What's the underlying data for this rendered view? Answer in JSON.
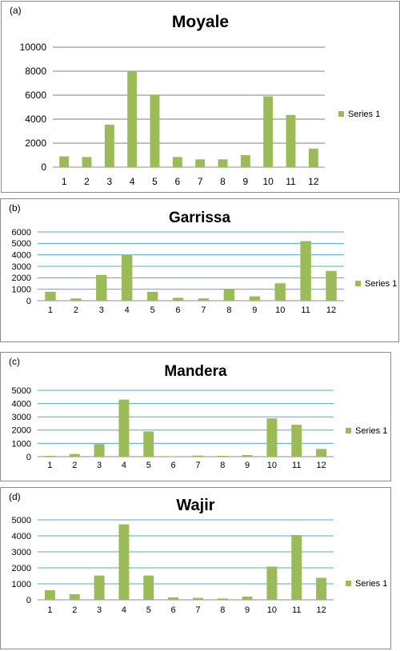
{
  "colors": {
    "bar": "#9bbb59",
    "grid_a": "#7f7f7f",
    "grid_b": "#4bacc6",
    "axis": "#8c8c8c",
    "text": "#000000"
  },
  "chart_data": [
    {
      "type": "bar",
      "panel": "(a)",
      "title": "Moyale",
      "categories": [
        "1",
        "2",
        "3",
        "4",
        "5",
        "6",
        "7",
        "8",
        "9",
        "10",
        "11",
        "12"
      ],
      "series": [
        {
          "name": "Series 1",
          "values": [
            900,
            850,
            3550,
            8000,
            6050,
            850,
            650,
            650,
            1000,
            5900,
            4350,
            1550
          ]
        }
      ],
      "ylim": [
        0,
        10000
      ],
      "yticks": [
        0,
        2000,
        4000,
        6000,
        8000,
        10000
      ],
      "grid": true,
      "legend": "right"
    },
    {
      "type": "bar",
      "panel": "(b)",
      "title": "Garrissa",
      "categories": [
        "1",
        "2",
        "3",
        "4",
        "5",
        "6",
        "7",
        "8",
        "9",
        "10",
        "11",
        "12"
      ],
      "series": [
        {
          "name": "Series 1",
          "values": [
            780,
            200,
            2250,
            4000,
            780,
            250,
            200,
            1000,
            380,
            1520,
            5200,
            2600
          ]
        }
      ],
      "ylim": [
        0,
        6000
      ],
      "yticks": [
        0,
        1000,
        2000,
        3000,
        4000,
        5000,
        6000
      ],
      "grid": true,
      "legend": "right"
    },
    {
      "type": "bar",
      "panel": "(c)",
      "title": "Mandera",
      "categories": [
        "1",
        "2",
        "3",
        "4",
        "5",
        "6",
        "7",
        "8",
        "9",
        "10",
        "11",
        "12"
      ],
      "series": [
        {
          "name": "Series 1",
          "values": [
            60,
            200,
            950,
            4300,
            1900,
            30,
            80,
            60,
            120,
            2880,
            2400,
            580
          ]
        }
      ],
      "ylim": [
        0,
        5000
      ],
      "yticks": [
        0,
        1000,
        2000,
        3000,
        4000,
        5000
      ],
      "grid": true,
      "legend": "right"
    },
    {
      "type": "bar",
      "panel": "(d)",
      "title": "Wajir",
      "categories": [
        "1",
        "2",
        "3",
        "4",
        "5",
        "6",
        "7",
        "8",
        "9",
        "10",
        "11",
        "12"
      ],
      "series": [
        {
          "name": "Series 1",
          "values": [
            600,
            350,
            1520,
            4720,
            1520,
            150,
            120,
            80,
            200,
            2080,
            4050,
            1380
          ]
        }
      ],
      "ylim": [
        0,
        5000
      ],
      "yticks": [
        0,
        1000,
        2000,
        3000,
        4000,
        5000
      ],
      "grid": true,
      "legend": "right"
    }
  ]
}
